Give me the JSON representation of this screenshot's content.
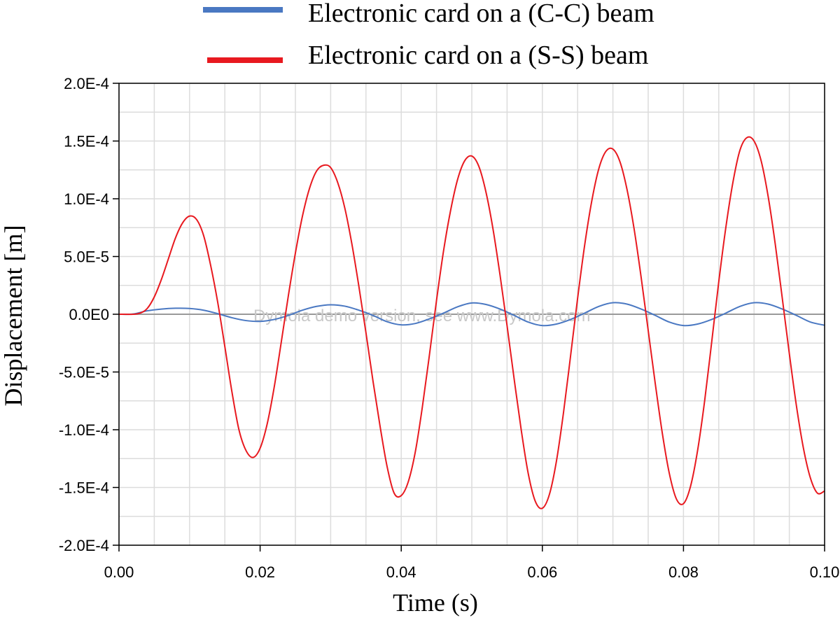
{
  "chart_data": {
    "type": "line",
    "title": "",
    "xlabel": "Time (s)",
    "ylabel": "Displacement [m]",
    "xlim": [
      0,
      0.1
    ],
    "ylim": [
      -0.0002,
      0.0002
    ],
    "grid": true,
    "legend_position": "top",
    "watermark": "Dymola demo version, see www.Dymola.com",
    "x_ticks": [
      "0.00",
      "0.02",
      "0.04",
      "0.06",
      "0.08",
      "0.10"
    ],
    "x_tick_values": [
      0,
      0.02,
      0.04,
      0.06,
      0.08,
      0.1
    ],
    "y_ticks": [
      "2.0E-4",
      "1.5E-4",
      "1.0E-4",
      "5.0E-5",
      "0.0E0",
      "-5.0E-5",
      "-1.0E-4",
      "-1.5E-4",
      "-2.0E-4"
    ],
    "y_tick_values": [
      0.0002,
      0.00015,
      0.0001,
      5e-05,
      0,
      -5e-05,
      -0.0001,
      -0.00015,
      -0.0002
    ],
    "series": [
      {
        "name": "Electronic card on a (C-C) beam",
        "color": "#4a78c2",
        "x": [
          0,
          0.002,
          0.004,
          0.006,
          0.008,
          0.01,
          0.012,
          0.014,
          0.016,
          0.018,
          0.02,
          0.022,
          0.024,
          0.026,
          0.028,
          0.03,
          0.032,
          0.034,
          0.036,
          0.038,
          0.04,
          0.042,
          0.044,
          0.046,
          0.048,
          0.05,
          0.052,
          0.054,
          0.056,
          0.058,
          0.06,
          0.062,
          0.064,
          0.066,
          0.068,
          0.07,
          0.072,
          0.074,
          0.076,
          0.078,
          0.08,
          0.082,
          0.084,
          0.086,
          0.088,
          0.09,
          0.092,
          0.094,
          0.096,
          0.098,
          0.1
        ],
        "y": [
          0,
          2e-07,
          3e-06,
          4.5e-06,
          5.2e-06,
          5e-06,
          3.5e-06,
          5e-07,
          -3e-06,
          -5.5e-06,
          -6.2e-06,
          -4.5e-06,
          -1e-06,
          3.5e-06,
          6.8e-06,
          8.2e-06,
          7e-06,
          3.5e-06,
          -1e-06,
          -6.5e-06,
          -9.2e-06,
          -8e-06,
          -4e-06,
          1e-06,
          6.5e-06,
          9.8e-06,
          8.5e-06,
          4.5e-06,
          -1e-06,
          -6.8e-06,
          -9.8e-06,
          -8.5e-06,
          -4.5e-06,
          1e-06,
          6.8e-06,
          1e-05,
          8.8e-06,
          4.5e-06,
          -1e-06,
          -6.8e-06,
          -9.8e-06,
          -8.5e-06,
          -4.5e-06,
          1e-06,
          6.8e-06,
          1e-05,
          8.8e-06,
          4.5e-06,
          -1e-06,
          -6.8e-06,
          -9.5e-06
        ]
      },
      {
        "name": "Electronic card on a (S-S) beam",
        "color": "#e8191f",
        "x": [
          0,
          0.002,
          0.003,
          0.004,
          0.005,
          0.006,
          0.007,
          0.008,
          0.009,
          0.01,
          0.011,
          0.012,
          0.013,
          0.014,
          0.015,
          0.016,
          0.017,
          0.018,
          0.019,
          0.02,
          0.021,
          0.022,
          0.023,
          0.024,
          0.025,
          0.026,
          0.027,
          0.028,
          0.029,
          0.03,
          0.031,
          0.032,
          0.033,
          0.034,
          0.035,
          0.036,
          0.037,
          0.038,
          0.039,
          0.04,
          0.041,
          0.042,
          0.043,
          0.044,
          0.045,
          0.046,
          0.047,
          0.048,
          0.049,
          0.05,
          0.051,
          0.052,
          0.053,
          0.054,
          0.055,
          0.056,
          0.057,
          0.058,
          0.059,
          0.06,
          0.061,
          0.062,
          0.063,
          0.064,
          0.065,
          0.066,
          0.067,
          0.068,
          0.069,
          0.07,
          0.071,
          0.072,
          0.073,
          0.074,
          0.075,
          0.076,
          0.077,
          0.078,
          0.079,
          0.08,
          0.081,
          0.082,
          0.083,
          0.084,
          0.085,
          0.086,
          0.087,
          0.088,
          0.089,
          0.09,
          0.091,
          0.092,
          0.093,
          0.094,
          0.095,
          0.096,
          0.097,
          0.098,
          0.099,
          0.1
        ],
        "y": [
          0,
          0,
          1e-06,
          5e-06,
          1.5e-05,
          3e-05,
          4.8e-05,
          6.6e-05,
          7.9e-05,
          8.5e-05,
          8.2e-05,
          6.8e-05,
          4.2e-05,
          1e-05,
          -2.8e-05,
          -6.7e-05,
          -0.0001,
          -0.000118,
          -0.000124,
          -0.000116,
          -9.5e-05,
          -6.3e-05,
          -2.4e-05,
          1.6e-05,
          5.3e-05,
          8.5e-05,
          0.000109,
          0.000124,
          0.000129,
          0.000127,
          0.000114,
          9.2e-05,
          6.1e-05,
          2.4e-05,
          -1.6e-05,
          -5.8e-05,
          -9.7e-05,
          -0.000132,
          -0.000155,
          -0.000157,
          -0.000145,
          -0.000119,
          -8e-05,
          -3.5e-05,
          1.2e-05,
          5.5e-05,
          9e-05,
          0.000117,
          0.000133,
          0.000137,
          0.000128,
          0.000106,
          7.4e-05,
          3.4e-05,
          -1e-05,
          -5.6e-05,
          -0.0001,
          -0.000138,
          -0.000162,
          -0.000168,
          -0.000156,
          -0.000127,
          -8.5e-05,
          -3.6e-05,
          1.4e-05,
          6e-05,
          9.8e-05,
          0.000126,
          0.000141,
          0.000143,
          0.000132,
          0.000108,
          7.4e-05,
          3.2e-05,
          -1.4e-05,
          -6e-05,
          -0.000103,
          -0.000138,
          -0.00016,
          -0.000164,
          -0.000149,
          -0.000118,
          -7.5e-05,
          -2.4e-05,
          2.8e-05,
          7.5e-05,
          0.000114,
          0.000142,
          0.000153,
          0.00015,
          0.000133,
          0.000102,
          6.1e-05,
          1.4e-05,
          -3.4e-05,
          -7.9e-05,
          -0.000116,
          -0.000142,
          -0.000155,
          -0.000153
        ]
      }
    ]
  }
}
